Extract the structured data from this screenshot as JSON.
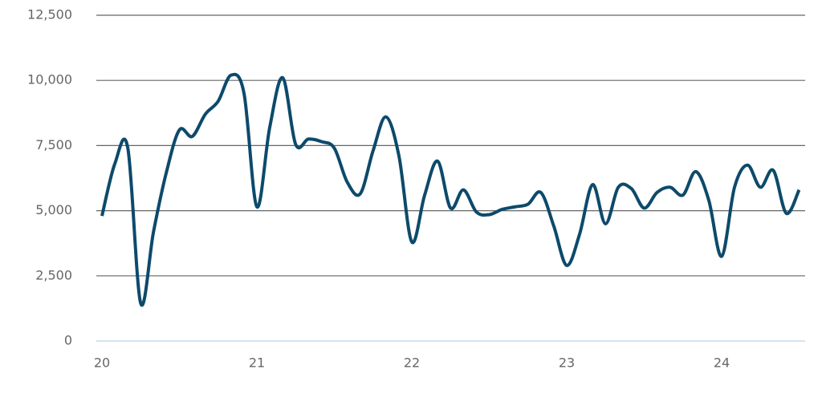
{
  "chart_data": {
    "type": "line",
    "x": [
      20,
      20.083,
      20.167,
      20.25,
      20.333,
      20.417,
      20.5,
      20.583,
      20.667,
      20.75,
      20.833,
      20.917,
      21,
      21.083,
      21.167,
      21.25,
      21.333,
      21.417,
      21.5,
      21.583,
      21.667,
      21.75,
      21.833,
      21.917,
      22,
      22.083,
      22.167,
      22.25,
      22.333,
      22.417,
      22.5,
      22.583,
      22.667,
      22.75,
      22.833,
      22.917,
      23,
      23.083,
      23.167,
      23.25,
      23.333,
      23.417,
      23.5,
      23.583,
      23.667,
      23.75,
      23.833,
      23.917,
      24,
      24.083,
      24.167,
      24.25,
      24.333,
      24.417,
      24.5
    ],
    "series": [
      {
        "color": "#0d4a6b",
        "values": [
          4800,
          6800,
          7400,
          1450,
          4200,
          6500,
          8100,
          7850,
          8700,
          9200,
          10200,
          9500,
          5150,
          8200,
          10100,
          7550,
          7750,
          7650,
          7400,
          6100,
          5650,
          7300,
          8600,
          7100,
          3800,
          5600,
          6900,
          5100,
          5800,
          4950,
          4850,
          5050,
          5150,
          5250,
          5700,
          4400,
          2900,
          4100,
          6000,
          4500,
          5900,
          5850,
          5100,
          5700,
          5900,
          5600,
          6500,
          5400,
          3250,
          5900,
          6750,
          5900,
          6550,
          4900,
          5800
        ]
      }
    ],
    "xlim": [
      20,
      24.5
    ],
    "xticks": [
      20,
      21,
      22,
      23,
      24
    ],
    "ylim": [
      0,
      12500
    ],
    "yticks": [
      0,
      {
        "value": 2500,
        "label": "2,500"
      },
      {
        "value": 5000,
        "label": "5,000"
      },
      {
        "value": 7500,
        "label": "7,500"
      },
      {
        "value": 10000,
        "label": "10,000"
      },
      {
        "value": 12500,
        "label": "12,500"
      }
    ],
    "grid": true
  }
}
